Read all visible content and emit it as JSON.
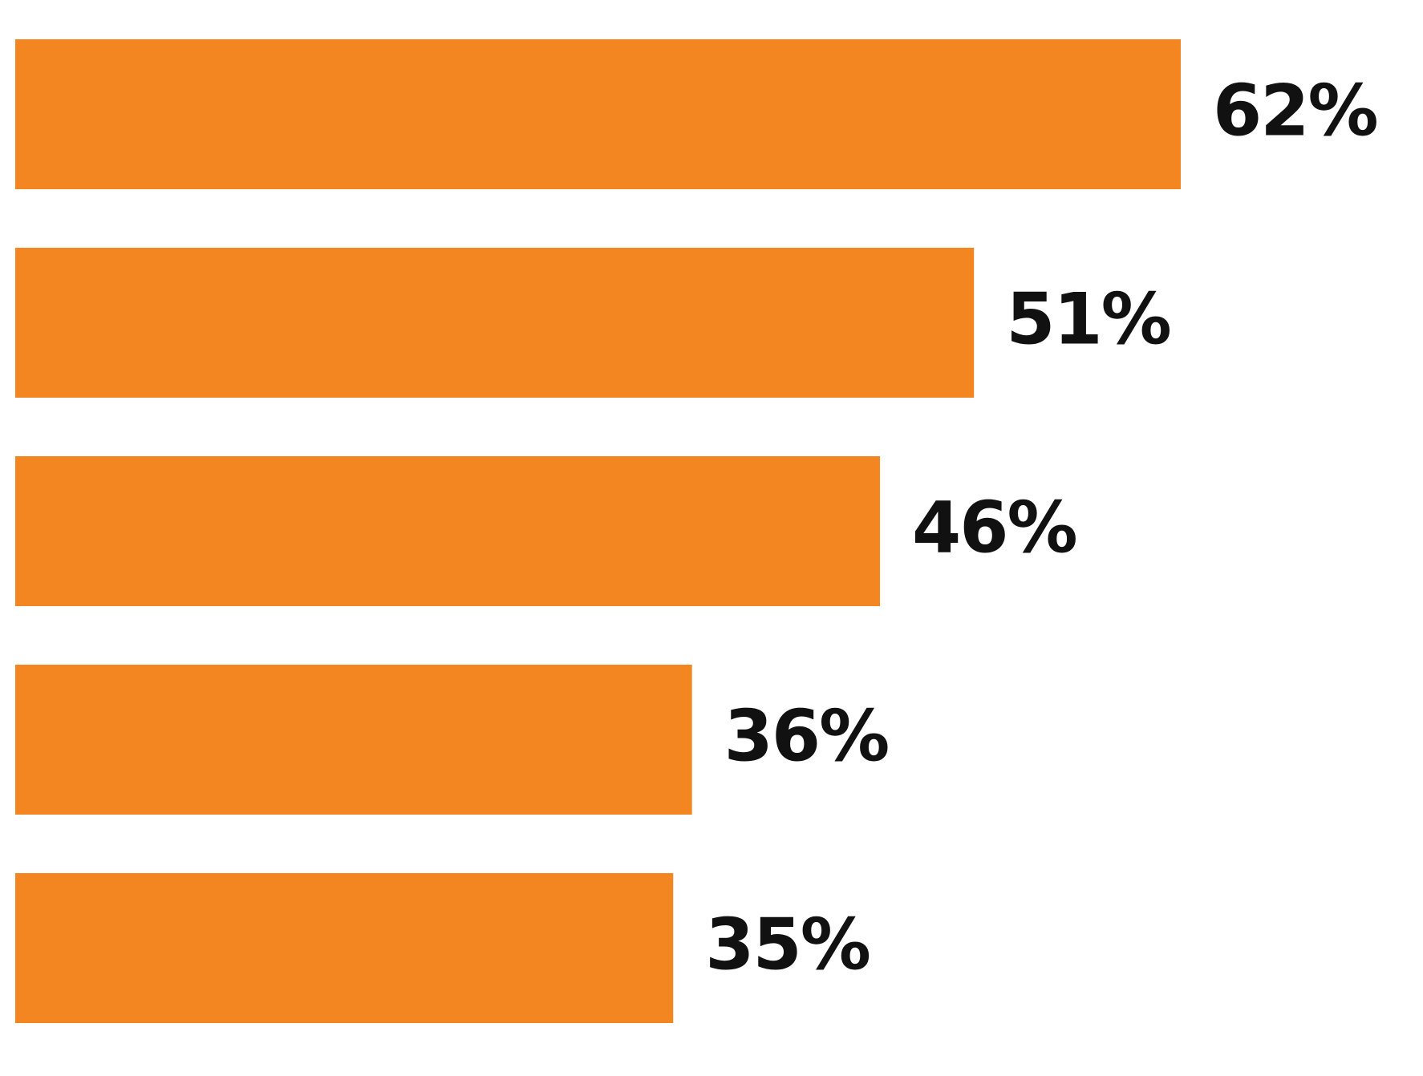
{
  "chart_data": {
    "type": "hbar",
    "values": [
      62,
      51,
      46,
      36,
      35
    ],
    "value_labels": [
      "62%",
      "51%",
      "46%",
      "36%",
      "35%"
    ],
    "color": "#f48622"
  }
}
